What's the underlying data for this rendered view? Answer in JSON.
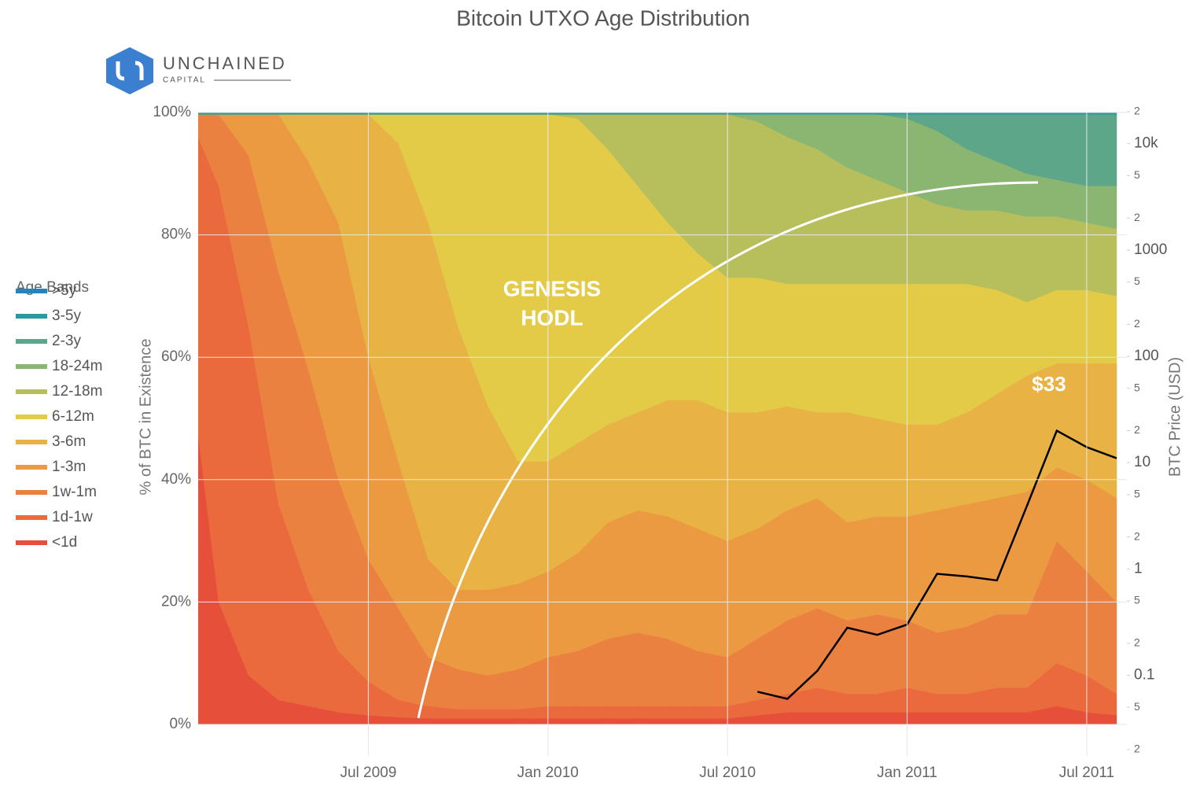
{
  "chart_data": {
    "type": "stacked-area",
    "title": "Bitcoin UTXO Age Distribution",
    "y_label": "% of BTC in Existence",
    "y2_label": "BTC Price (USD)",
    "legend_title": "Age Bands",
    "legend": "left",
    "grid": true,
    "y2log": true,
    "x": [
      "2009-01",
      "2009-02",
      "2009-03",
      "2009-04",
      "2009-05",
      "2009-06",
      "2009-07",
      "2009-08",
      "2009-09",
      "2009-10",
      "2009-11",
      "2009-12",
      "2010-01",
      "2010-02",
      "2010-03",
      "2010-04",
      "2010-05",
      "2010-06",
      "2010-07",
      "2010-08",
      "2010-09",
      "2010-10",
      "2010-11",
      "2010-12",
      "2011-01",
      "2011-02",
      "2011-03",
      "2011-04",
      "2011-05",
      "2011-06",
      "2011-07",
      "2011-08"
    ],
    "xlim": [
      "2009-01",
      "2011-08"
    ],
    "xticks": [
      {
        "value": "2009-07",
        "label": "Jul 2009"
      },
      {
        "value": "2010-01",
        "label": "Jan 2010"
      },
      {
        "value": "2010-07",
        "label": "Jul 2010"
      },
      {
        "value": "2011-01",
        "label": "Jan 2011"
      },
      {
        "value": "2011-07",
        "label": "Jul 2011"
      }
    ],
    "ylim": [
      0,
      100
    ],
    "yticks": [
      {
        "value": 0,
        "label": "0%"
      },
      {
        "value": 20,
        "label": "20%"
      },
      {
        "value": 40,
        "label": "40%"
      },
      {
        "value": 60,
        "label": "60%"
      },
      {
        "value": 80,
        "label": "80%"
      },
      {
        "value": 100,
        "label": "100%"
      }
    ],
    "y2lim": [
      0.02,
      20000
    ],
    "y2ticks": [
      {
        "value": 20000,
        "label": "2"
      },
      {
        "value": 10000,
        "label": "10k"
      },
      {
        "value": 5000,
        "label": "5"
      },
      {
        "value": 2000,
        "label": "2"
      },
      1000,
      {
        "value": 500,
        "label": "5"
      },
      {
        "value": 200,
        "label": "2"
      },
      100,
      {
        "value": 50,
        "label": "5"
      },
      {
        "value": 20,
        "label": "2"
      },
      10,
      5,
      2,
      1,
      {
        "value": 0.5,
        "label": "5"
      },
      {
        "value": 0.2,
        "label": "2"
      },
      0.1,
      {
        "value": 0.05,
        "label": "5"
      },
      {
        "value": 0.02,
        "label": "2"
      }
    ],
    "series": [
      {
        "name": "<1d",
        "color": "#e6503a",
        "values": [
          60,
          20,
          8,
          4,
          3,
          2,
          1.5,
          1.2,
          1,
          1,
          1,
          1,
          1,
          1,
          1,
          1,
          1,
          1,
          1,
          1.5,
          2,
          2,
          2,
          2,
          2,
          2,
          2,
          2,
          2,
          3,
          2,
          1.5
        ]
      },
      {
        "name": "1d-1w",
        "color": "#ea6a3d",
        "values": [
          39.7,
          68,
          57,
          32,
          19,
          10,
          5.5,
          2.8,
          2,
          1.5,
          1.5,
          1.5,
          2,
          2,
          2,
          2,
          2,
          2,
          2,
          2.5,
          3,
          4,
          3,
          3,
          4,
          3,
          3,
          4,
          4,
          7,
          6,
          3.5
        ]
      },
      {
        "name": "1w-1m",
        "color": "#eb8140",
        "values": [
          0,
          11.7,
          28,
          38,
          36,
          28,
          20,
          15,
          8,
          6.5,
          5.5,
          6.5,
          8,
          9,
          11,
          12,
          11,
          9,
          8,
          10,
          12,
          13,
          12,
          13,
          11,
          10,
          11,
          12,
          12,
          20,
          17,
          15
        ]
      },
      {
        "name": "1-3m",
        "color": "#eb9a42",
        "values": [
          0,
          0,
          6.7,
          25.7,
          34,
          42,
          33,
          24,
          16,
          13,
          14,
          14,
          14,
          16,
          19,
          20,
          20,
          20,
          19,
          18,
          18,
          18,
          16,
          16,
          17,
          20,
          20,
          19,
          20,
          12,
          15,
          17
        ]
      },
      {
        "name": "3-6m",
        "color": "#e9b244",
        "values": [
          0,
          0,
          0,
          0,
          7.7,
          17.7,
          39.7,
          52,
          55,
          43,
          30,
          20,
          18,
          18,
          16,
          16,
          19,
          21,
          21,
          19,
          17,
          14,
          18,
          16,
          15,
          14,
          15,
          17,
          19,
          17,
          19,
          22
        ]
      },
      {
        "name": "6-12m",
        "color": "#e3cb48",
        "values": [
          0,
          0,
          0,
          0,
          0,
          0,
          0,
          4.7,
          17.7,
          34.7,
          47.7,
          56.7,
          56.7,
          53,
          45,
          37,
          29,
          24,
          22,
          22,
          20,
          21,
          21,
          22,
          23,
          23,
          21,
          17,
          12,
          12,
          12,
          11
        ]
      },
      {
        "name": "12-18m",
        "color": "#b6bf5b",
        "values": [
          0,
          0,
          0,
          0,
          0,
          0,
          0,
          0,
          0,
          0,
          0,
          0,
          0,
          0.7,
          5.7,
          11.7,
          17.7,
          22.7,
          26.7,
          25.5,
          24,
          22,
          19,
          17,
          15,
          13,
          12,
          13,
          14,
          12,
          11,
          11
        ]
      },
      {
        "name": "18-24m",
        "color": "#8ab672",
        "values": [
          0,
          0,
          0,
          0,
          0,
          0,
          0,
          0,
          0,
          0,
          0,
          0,
          0,
          0,
          0,
          0,
          0,
          0,
          0,
          1.2,
          3.7,
          5.7,
          8.7,
          10.7,
          12,
          12,
          10,
          8,
          7,
          6,
          6,
          7
        ]
      },
      {
        "name": "2-3y",
        "color": "#5ea68a",
        "values": [
          0,
          0,
          0,
          0,
          0,
          0,
          0,
          0,
          0,
          0,
          0,
          0,
          0,
          0,
          0,
          0,
          0,
          0,
          0,
          0,
          0,
          0,
          0,
          0,
          0.7,
          2.7,
          5.7,
          7.7,
          9.7,
          10.7,
          11.7,
          11.7
        ]
      },
      {
        "name": "3-5y",
        "color": "#2a9aa2",
        "values": [
          0.3,
          0.3,
          0.3,
          0.3,
          0.3,
          0.3,
          0.3,
          0.3,
          0.3,
          0.3,
          0.3,
          0.3,
          0.3,
          0.3,
          0.3,
          0.3,
          0.3,
          0.3,
          0.3,
          0.3,
          0.3,
          0.3,
          0.3,
          0.3,
          0.3,
          0.3,
          0.3,
          0.3,
          0.3,
          0.3,
          0.3,
          0.3
        ]
      },
      {
        "name": ">5y",
        "color": "#2186bd",
        "values": [
          0,
          0,
          0,
          0,
          0,
          0,
          0,
          0,
          0,
          0,
          0,
          0,
          0,
          0,
          0,
          0,
          0,
          0,
          0,
          0,
          0,
          0,
          0,
          0,
          0,
          0,
          0,
          0,
          0,
          0,
          0,
          0
        ]
      },
      {
        "type": "line",
        "axis": "y2",
        "color": "#000000",
        "values": [
          null,
          null,
          null,
          null,
          null,
          null,
          null,
          null,
          null,
          null,
          null,
          null,
          null,
          null,
          null,
          null,
          null,
          null,
          null,
          0.07,
          0.06,
          0.11,
          0.28,
          0.24,
          0.3,
          0.9,
          0.85,
          0.78,
          3.9,
          20,
          14,
          11
        ]
      }
    ],
    "annotations": [
      "GENESIS",
      "HODL",
      "$33"
    ]
  },
  "logo": {
    "name": "UNCHAINED",
    "tagline": "CAPITAL"
  }
}
